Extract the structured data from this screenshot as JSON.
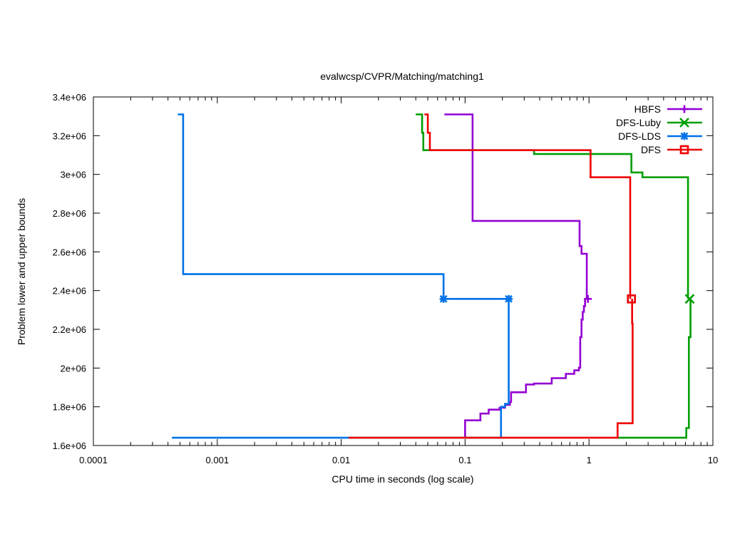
{
  "chart_data": {
    "type": "line",
    "title": "evalwcsp/CVPR/Matching/matching1",
    "xlabel": "CPU time in seconds (log scale)",
    "ylabel": "Problem lower and upper bounds",
    "x_scale": "log",
    "xlim": [
      0.0001,
      10
    ],
    "ylim": [
      1600000,
      3400000
    ],
    "xticks": [
      {
        "v": 0.0001,
        "label": "0.0001"
      },
      {
        "v": 0.001,
        "label": "0.001"
      },
      {
        "v": 0.01,
        "label": "0.01"
      },
      {
        "v": 0.1,
        "label": "0.1"
      },
      {
        "v": 1,
        "label": "1"
      },
      {
        "v": 10,
        "label": "10"
      }
    ],
    "yticks": [
      {
        "v": 1600000,
        "label": "1.6e+06"
      },
      {
        "v": 1800000,
        "label": "1.8e+06"
      },
      {
        "v": 2000000,
        "label": "2e+06"
      },
      {
        "v": 2200000,
        "label": "2.2e+06"
      },
      {
        "v": 2400000,
        "label": "2.4e+06"
      },
      {
        "v": 2600000,
        "label": "2.6e+06"
      },
      {
        "v": 2800000,
        "label": "2.8e+06"
      },
      {
        "v": 3000000,
        "label": "3e+06"
      },
      {
        "v": 3200000,
        "label": "3.2e+06"
      },
      {
        "v": 3400000,
        "label": "3.4e+06"
      }
    ],
    "legend_position": "top-right",
    "grid": false,
    "series": [
      {
        "name": "HBFS",
        "color": "#9400d3",
        "marker": "plus",
        "marker_point": [
          0.98,
          2357000
        ],
        "segments": [
          [
            [
              0.068,
              3310000
            ],
            [
              0.115,
              3310000
            ],
            [
              0.115,
              2760000
            ],
            [
              0.84,
              2760000
            ],
            [
              0.84,
              2630000
            ],
            [
              0.87,
              2630000
            ],
            [
              0.87,
              2590000
            ],
            [
              0.96,
              2590000
            ],
            [
              0.96,
              2357000
            ]
          ],
          [
            [
              0.1,
              1640000
            ],
            [
              0.1,
              1730000
            ],
            [
              0.133,
              1730000
            ],
            [
              0.133,
              1765000
            ],
            [
              0.155,
              1765000
            ],
            [
              0.155,
              1785000
            ],
            [
              0.19,
              1785000
            ],
            [
              0.19,
              1795000
            ],
            [
              0.21,
              1795000
            ],
            [
              0.21,
              1810000
            ],
            [
              0.23,
              1810000
            ],
            [
              0.23,
              1825000
            ],
            [
              0.235,
              1825000
            ],
            [
              0.235,
              1875000
            ],
            [
              0.31,
              1875000
            ],
            [
              0.31,
              1915000
            ],
            [
              0.36,
              1915000
            ],
            [
              0.36,
              1920000
            ],
            [
              0.5,
              1920000
            ],
            [
              0.5,
              1948000
            ],
            [
              0.65,
              1948000
            ],
            [
              0.65,
              1970000
            ],
            [
              0.76,
              1970000
            ],
            [
              0.76,
              1988000
            ],
            [
              0.83,
              1988000
            ],
            [
              0.83,
              2002000
            ],
            [
              0.85,
              2002000
            ],
            [
              0.85,
              2160000
            ],
            [
              0.87,
              2160000
            ],
            [
              0.87,
              2250000
            ],
            [
              0.89,
              2250000
            ],
            [
              0.89,
              2290000
            ],
            [
              0.91,
              2290000
            ],
            [
              0.91,
              2320000
            ],
            [
              0.93,
              2320000
            ],
            [
              0.93,
              2357000
            ]
          ]
        ]
      },
      {
        "name": "DFS-Luby",
        "color": "#009e00",
        "marker": "x",
        "marker_point": [
          6.5,
          2357000
        ],
        "segments": [
          [
            [
              0.04,
              3310000
            ],
            [
              0.045,
              3310000
            ],
            [
              0.045,
              3215000
            ],
            [
              0.046,
              3215000
            ],
            [
              0.046,
              3125000
            ],
            [
              0.36,
              3125000
            ],
            [
              0.36,
              3105000
            ],
            [
              2.2,
              3105000
            ],
            [
              2.2,
              3010000
            ],
            [
              2.7,
              3010000
            ],
            [
              2.7,
              2985000
            ],
            [
              6.3,
              2985000
            ],
            [
              6.3,
              2357000
            ]
          ],
          [
            [
              1.7,
              1640000
            ],
            [
              6.1,
              1640000
            ],
            [
              6.1,
              1690000
            ],
            [
              6.4,
              1690000
            ],
            [
              6.4,
              2160000
            ],
            [
              6.6,
              2160000
            ],
            [
              6.6,
              2357000
            ]
          ]
        ]
      },
      {
        "name": "DFS-LDS",
        "color": "#0072e8",
        "marker": "star",
        "marker_point": [
          0.067,
          2357000
        ],
        "marker_point_2": [
          0.225,
          2357000
        ],
        "segments": [
          [
            [
              0.00048,
              3310000
            ],
            [
              0.00053,
              3310000
            ],
            [
              0.00053,
              2485000
            ],
            [
              0.067,
              2485000
            ],
            [
              0.067,
              2357000
            ],
            [
              0.225,
              2357000
            ]
          ],
          [
            [
              0.00043,
              1640000
            ],
            [
              0.195,
              1640000
            ],
            [
              0.195,
              1800000
            ],
            [
              0.21,
              1800000
            ],
            [
              0.21,
              1815000
            ],
            [
              0.225,
              1815000
            ],
            [
              0.225,
              2357000
            ]
          ]
        ]
      },
      {
        "name": "DFS",
        "color": "#ef0000",
        "marker": "square",
        "marker_point": [
          2.2,
          2357000
        ],
        "segments": [
          [
            [
              0.047,
              3310000
            ],
            [
              0.05,
              3310000
            ],
            [
              0.05,
              3215000
            ],
            [
              0.052,
              3215000
            ],
            [
              0.052,
              3125000
            ],
            [
              1.03,
              3125000
            ],
            [
              1.03,
              2985000
            ],
            [
              2.15,
              2985000
            ],
            [
              2.15,
              2357000
            ]
          ],
          [
            [
              0.0115,
              1640000
            ],
            [
              1.7,
              1640000
            ],
            [
              1.7,
              1715000
            ],
            [
              2.25,
              1715000
            ],
            [
              2.25,
              2230000
            ],
            [
              2.23,
              2230000
            ],
            [
              2.23,
              2357000
            ]
          ]
        ]
      }
    ]
  }
}
